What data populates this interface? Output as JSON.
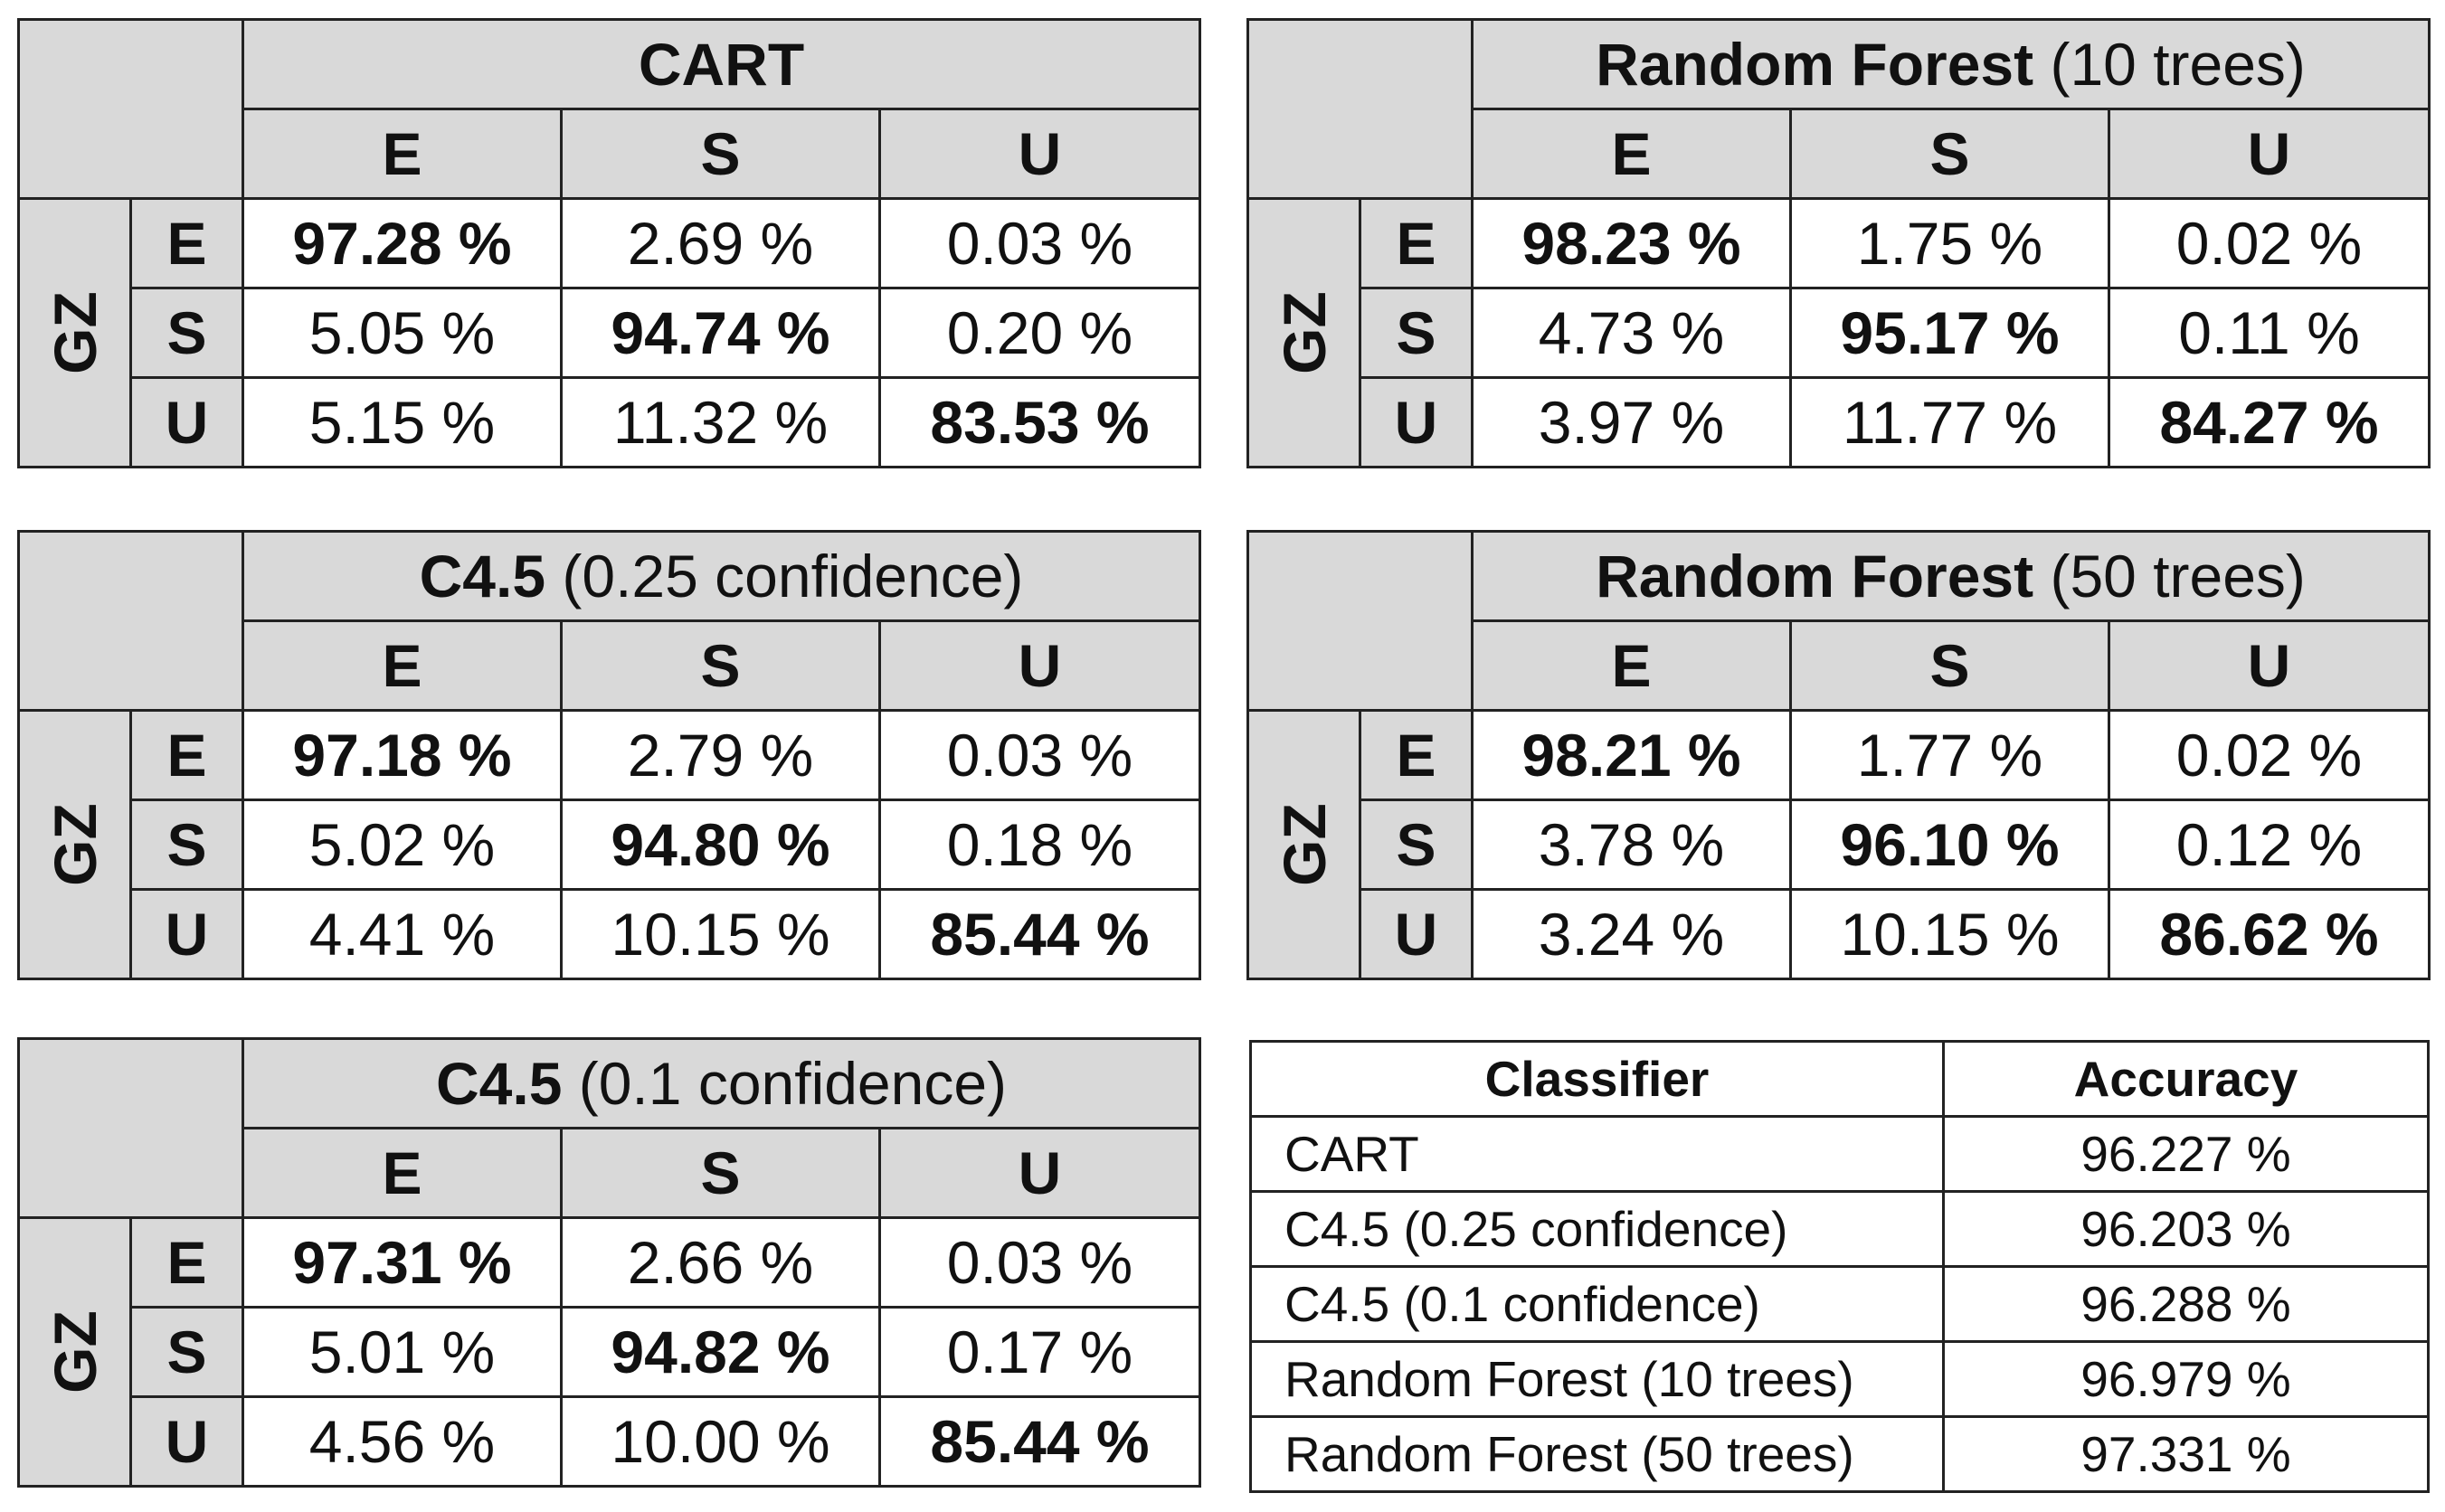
{
  "row_group_label": "GZ",
  "col_labels": [
    "E",
    "S",
    "U"
  ],
  "row_labels": [
    "E",
    "S",
    "U"
  ],
  "matrices": [
    {
      "title": "CART",
      "subtitle": "",
      "cells": [
        [
          "97.28 %",
          "2.69 %",
          "0.03 %"
        ],
        [
          "5.05 %",
          "94.74 %",
          "0.20 %"
        ],
        [
          "5.15 %",
          "11.32 %",
          "83.53 %"
        ]
      ]
    },
    {
      "title": "Random Forest",
      "subtitle": "(10 trees)",
      "cells": [
        [
          "98.23 %",
          "1.75 %",
          "0.02 %"
        ],
        [
          "4.73 %",
          "95.17 %",
          "0.11 %"
        ],
        [
          "3.97 %",
          "11.77 %",
          "84.27 %"
        ]
      ]
    },
    {
      "title": "C4.5",
      "subtitle": "(0.25 confidence)",
      "cells": [
        [
          "97.18 %",
          "2.79 %",
          "0.03 %"
        ],
        [
          "5.02 %",
          "94.80 %",
          "0.18 %"
        ],
        [
          "4.41 %",
          "10.15 %",
          "85.44 %"
        ]
      ]
    },
    {
      "title": "Random Forest",
      "subtitle": "(50 trees)",
      "cells": [
        [
          "98.21 %",
          "1.77 %",
          "0.02 %"
        ],
        [
          "3.78 %",
          "96.10 %",
          "0.12 %"
        ],
        [
          "3.24 %",
          "10.15 %",
          "86.62 %"
        ]
      ]
    },
    {
      "title": "C4.5",
      "subtitle": "(0.1 confidence)",
      "cells": [
        [
          "97.31 %",
          "2.66 %",
          "0.03 %"
        ],
        [
          "5.01 %",
          "94.82 %",
          "0.17 %"
        ],
        [
          "4.56 %",
          "10.00 %",
          "85.44 %"
        ]
      ]
    }
  ],
  "accuracy_table": {
    "headers": [
      "Classifier",
      "Accuracy"
    ],
    "rows": [
      [
        "CART",
        "96.227 %"
      ],
      [
        "C4.5 (0.25 confidence)",
        "96.203 %"
      ],
      [
        "C4.5 (0.1 confidence)",
        "96.288 %"
      ],
      [
        "Random Forest (10 trees)",
        "96.979 %"
      ],
      [
        "Random Forest (50 trees)",
        "97.331 %"
      ]
    ]
  },
  "colors": {
    "header_fill": "#d9d9d9",
    "border": "#222222"
  }
}
